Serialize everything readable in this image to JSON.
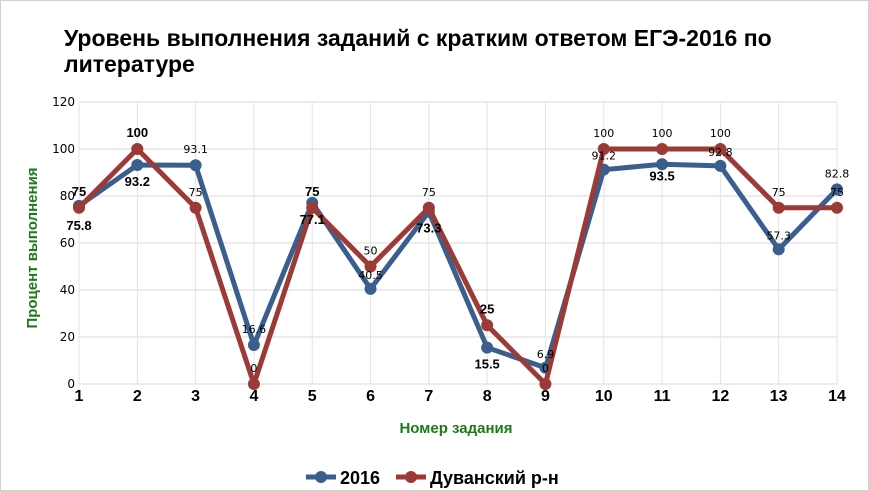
{
  "chart_data": {
    "type": "line",
    "title_line1": "Уровень выполнения заданий с кратким ответом ЕГЭ-2016 по",
    "title_line2": "литературе",
    "xlabel": "Номер задания",
    "ylabel": "Процент выполнения",
    "categories": [
      "1",
      "2",
      "3",
      "4",
      "5",
      "6",
      "7",
      "8",
      "9",
      "10",
      "11",
      "12",
      "13",
      "14"
    ],
    "ylim": [
      0,
      120
    ],
    "yticks": [
      0,
      20,
      40,
      60,
      80,
      100,
      120
    ],
    "grid": true,
    "legend_position": "bottom",
    "series": [
      {
        "name": "2016",
        "color": "#3a5f8f",
        "values": [
          75.8,
          93.2,
          93.1,
          16.6,
          77.1,
          40.5,
          73.3,
          15.5,
          6.9,
          91.2,
          93.5,
          92.8,
          57.3,
          82.8
        ],
        "labels": [
          "75.8",
          "93.2",
          "93.1",
          "16.6",
          "77.1",
          "40.5",
          "73.3",
          "15.5",
          "6.9",
          "91.2",
          "93.5",
          "92.8",
          "57.3",
          "82.8"
        ]
      },
      {
        "name": "Дуванский р-н",
        "color": "#9b3a36",
        "values": [
          75,
          100,
          75,
          0,
          75,
          50,
          75,
          25,
          0,
          100,
          100,
          100,
          75,
          75
        ],
        "labels": [
          "75",
          "100",
          "75",
          "0",
          "75",
          "50",
          "75",
          "25",
          "0",
          "100",
          "100",
          "100",
          "75",
          "75"
        ]
      }
    ]
  }
}
